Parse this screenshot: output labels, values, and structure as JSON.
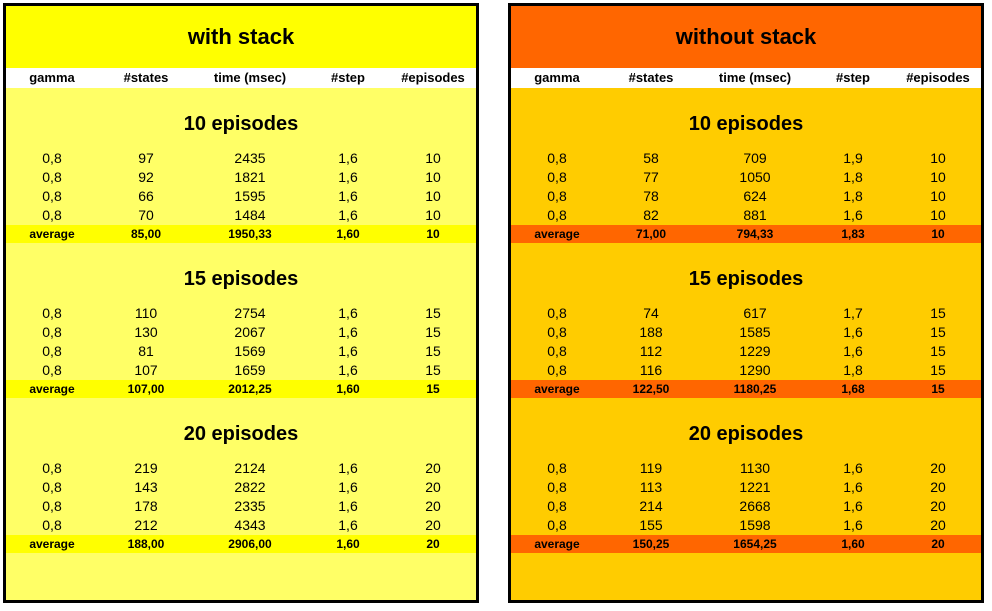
{
  "columns": [
    "gamma",
    "#states",
    "time (msec)",
    "#step",
    "#episodes"
  ],
  "panels": [
    {
      "title": "with stack",
      "colors": {
        "title_bg": "#ffff00",
        "body_bg": "#ffff66",
        "avg_bg": "#ffff00"
      },
      "sections": [
        {
          "title": "10 episodes",
          "rows": [
            [
              "0,8",
              "97",
              "2435",
              "1,6",
              "10"
            ],
            [
              "0,8",
              "92",
              "1821",
              "1,6",
              "10"
            ],
            [
              "0,8",
              "66",
              "1595",
              "1,6",
              "10"
            ],
            [
              "0,8",
              "70",
              "1484",
              "1,6",
              "10"
            ]
          ],
          "average": [
            "average",
            "85,00",
            "1950,33",
            "1,60",
            "10"
          ]
        },
        {
          "title": "15 episodes",
          "rows": [
            [
              "0,8",
              "110",
              "2754",
              "1,6",
              "15"
            ],
            [
              "0,8",
              "130",
              "2067",
              "1,6",
              "15"
            ],
            [
              "0,8",
              "81",
              "1569",
              "1,6",
              "15"
            ],
            [
              "0,8",
              "107",
              "1659",
              "1,6",
              "15"
            ]
          ],
          "average": [
            "average",
            "107,00",
            "2012,25",
            "1,60",
            "15"
          ]
        },
        {
          "title": "20 episodes",
          "rows": [
            [
              "0,8",
              "219",
              "2124",
              "1,6",
              "20"
            ],
            [
              "0,8",
              "143",
              "2822",
              "1,6",
              "20"
            ],
            [
              "0,8",
              "178",
              "2335",
              "1,6",
              "20"
            ],
            [
              "0,8",
              "212",
              "4343",
              "1,6",
              "20"
            ]
          ],
          "average": [
            "average",
            "188,00",
            "2906,00",
            "1,60",
            "20"
          ]
        }
      ]
    },
    {
      "title": "without stack",
      "colors": {
        "title_bg": "#ff6600",
        "body_bg": "#ffcc00",
        "avg_bg": "#ff6600"
      },
      "sections": [
        {
          "title": "10 episodes",
          "rows": [
            [
              "0,8",
              "58",
              "709",
              "1,9",
              "10"
            ],
            [
              "0,8",
              "77",
              "1050",
              "1,8",
              "10"
            ],
            [
              "0,8",
              "78",
              "624",
              "1,8",
              "10"
            ],
            [
              "0,8",
              "82",
              "881",
              "1,6",
              "10"
            ]
          ],
          "average": [
            "average",
            "71,00",
            "794,33",
            "1,83",
            "10"
          ]
        },
        {
          "title": "15 episodes",
          "rows": [
            [
              "0,8",
              "74",
              "617",
              "1,7",
              "15"
            ],
            [
              "0,8",
              "188",
              "1585",
              "1,6",
              "15"
            ],
            [
              "0,8",
              "112",
              "1229",
              "1,6",
              "15"
            ],
            [
              "0,8",
              "116",
              "1290",
              "1,8",
              "15"
            ]
          ],
          "average": [
            "average",
            "122,50",
            "1180,25",
            "1,68",
            "15"
          ]
        },
        {
          "title": "20 episodes",
          "rows": [
            [
              "0,8",
              "119",
              "1130",
              "1,6",
              "20"
            ],
            [
              "0,8",
              "113",
              "1221",
              "1,6",
              "20"
            ],
            [
              "0,8",
              "214",
              "2668",
              "1,6",
              "20"
            ],
            [
              "0,8",
              "155",
              "1598",
              "1,6",
              "20"
            ]
          ],
          "average": [
            "average",
            "150,25",
            "1654,25",
            "1,60",
            "20"
          ]
        }
      ]
    }
  ]
}
